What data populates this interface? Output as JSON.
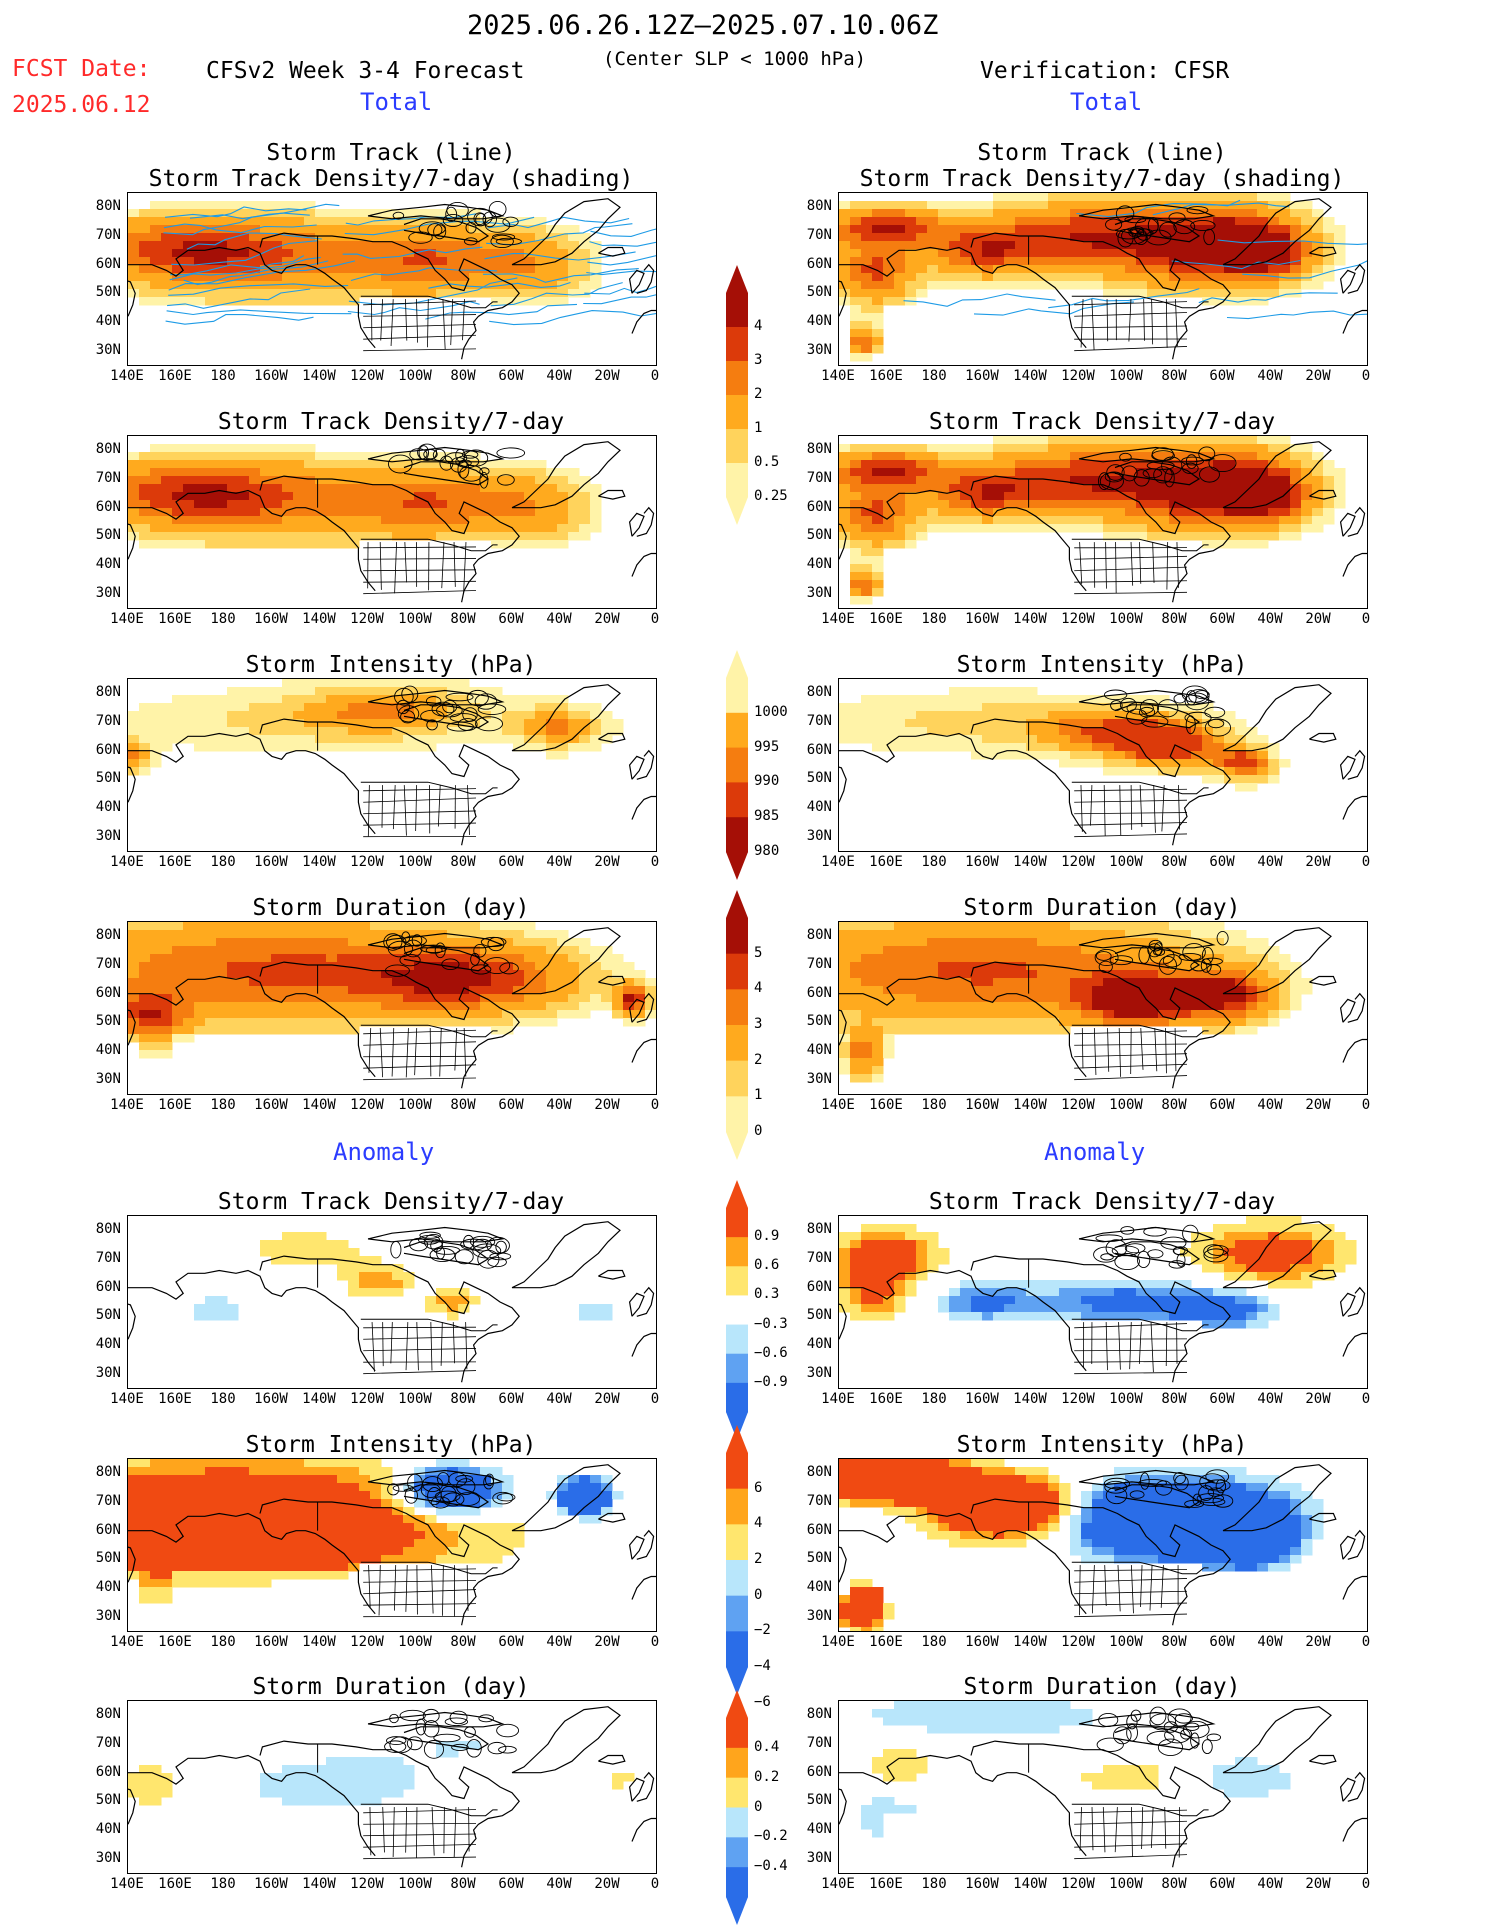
{
  "header": {
    "period": "2025.06.26.12Z–2025.07.10.06Z",
    "fcst_label": "FCST Date:",
    "fcst_date": "2025.06.12",
    "model": "CFSv2 Week 3-4 Forecast",
    "criterion": "(Center SLP < 1000 hPa)",
    "verification": "Verification: CFSR",
    "total_left": "Total",
    "total_right": "Total",
    "anomaly_left": "Anomaly",
    "anomaly_right": "Anomaly"
  },
  "panel_titles": {
    "track_line": "Storm Track (line)",
    "track_shading": "Storm Track Density/7-day (shading)",
    "density": "Storm Track Density/7-day",
    "intensity": "Storm Intensity (hPa)",
    "duration": "Storm Duration (day)"
  },
  "axes": {
    "lat_labels": [
      "80N",
      "70N",
      "60N",
      "50N",
      "40N",
      "30N"
    ],
    "lon_labels": [
      "140E",
      "160E",
      "180",
      "160W",
      "140W",
      "120W",
      "100W",
      "80W",
      "60W",
      "40W",
      "20W",
      "0"
    ]
  },
  "colorbars": {
    "density_total": [
      "4",
      "3",
      "2",
      "1",
      "0.5",
      "0.25"
    ],
    "intensity_total": [
      "1000",
      "995",
      "990",
      "985",
      "980"
    ],
    "duration_total": [
      "5",
      "4",
      "3",
      "2",
      "1",
      "0"
    ],
    "density_anom": [
      "0.9",
      "0.6",
      "0.3",
      "−0.3",
      "−0.6",
      "−0.9"
    ],
    "intensity_anom": [
      "6",
      "4",
      "2",
      "0",
      "−2",
      "−4",
      "−6"
    ],
    "duration_anom": [
      "0.4",
      "0.2",
      "0",
      "−0.2",
      "−0.4"
    ]
  },
  "palettes": {
    "warm": [
      "#ffffff",
      "#fff3a8",
      "#ffd35c",
      "#ffaa1e",
      "#f57d10",
      "#dc3a0a",
      "#a50f06"
    ],
    "anom": [
      "#2a6de8",
      "#5fa2f2",
      "#b8e6fb",
      "#ffffff",
      "#ffe66e",
      "#ffa51c",
      "#f04a12"
    ],
    "intensity": [
      "#a50f06",
      "#dc3a0a",
      "#f57d10",
      "#ffaa1e",
      "#fff3a8",
      "#ffffff"
    ],
    "track_line": "#1e9be6"
  },
  "chart_data": [
    {
      "type": "heatmap",
      "panel": "forecast-total-track",
      "title": "Storm Track (line) / Storm Track Density/7-day (shading)",
      "scheme": "warm",
      "blobs": [
        [
          190,
          -115,
          65,
          55,
          10,
          1.6
        ],
        [
          220,
          -130,
          60,
          70,
          14,
          1.2
        ],
        [
          270,
          -85,
          62,
          30,
          10,
          2.2
        ],
        [
          160,
          -30,
          68,
          40,
          8,
          1.7
        ],
        [
          170,
          -160,
          60,
          30,
          8,
          1.4
        ],
        [
          310,
          -50,
          60,
          20,
          10,
          1.5
        ]
      ]
    },
    {
      "type": "heatmap",
      "panel": "verification-total-track",
      "title": "Storm Track (line) / Storm Track Density/7-day (shading)",
      "scheme": "warm",
      "blobs": [
        [
          160,
          -10,
          73,
          22,
          6,
          4.2
        ],
        [
          155,
          -35,
          58,
          15,
          10,
          3.2
        ],
        [
          150,
          -45,
          33,
          6,
          5,
          3.0
        ],
        [
          200,
          -85,
          65,
          22,
          8,
          3.3
        ],
        [
          240,
          -130,
          70,
          36,
          10,
          3.6
        ],
        [
          290,
          -90,
          66,
          35,
          12,
          4.0
        ],
        [
          320,
          -60,
          64,
          14,
          8,
          3.0
        ],
        [
          305,
          -30,
          68,
          22,
          10,
          3.2
        ]
      ]
    },
    {
      "type": "heatmap",
      "panel": "forecast-total-density",
      "title": "Storm Track Density/7-day",
      "scheme": "warm",
      "blobs": [
        [
          190,
          -115,
          65,
          55,
          10,
          1.6
        ],
        [
          220,
          -130,
          60,
          70,
          14,
          1.2
        ],
        [
          270,
          -85,
          62,
          30,
          10,
          2.2
        ],
        [
          160,
          -30,
          68,
          40,
          8,
          1.7
        ],
        [
          170,
          -160,
          60,
          30,
          8,
          1.4
        ],
        [
          310,
          -50,
          60,
          20,
          10,
          1.5
        ]
      ]
    },
    {
      "type": "heatmap",
      "panel": "verification-total-density",
      "title": "Storm Track Density/7-day",
      "scheme": "warm",
      "blobs": [
        [
          160,
          -10,
          73,
          22,
          6,
          4.2
        ],
        [
          155,
          -35,
          58,
          15,
          10,
          3.2
        ],
        [
          150,
          -45,
          33,
          6,
          5,
          3.0
        ],
        [
          200,
          -85,
          65,
          22,
          8,
          3.3
        ],
        [
          240,
          -130,
          70,
          36,
          10,
          3.6
        ],
        [
          290,
          -90,
          66,
          35,
          12,
          4.0
        ],
        [
          320,
          -60,
          64,
          14,
          8,
          3.0
        ],
        [
          305,
          -30,
          68,
          22,
          10,
          3.2
        ]
      ]
    },
    {
      "type": "heatmap",
      "panel": "forecast-total-intensity",
      "title": "Storm Intensity (hPa)",
      "scheme": "intensity",
      "blobs": [
        [
          200,
          -140,
          70,
          80,
          12,
          1.2
        ],
        [
          250,
          -120,
          75,
          40,
          10,
          2.0
        ],
        [
          320,
          -60,
          68,
          20,
          8,
          2.4
        ],
        [
          140,
          -20,
          58,
          10,
          6,
          2.6
        ]
      ]
    },
    {
      "type": "heatmap",
      "panel": "verification-total-intensity",
      "title": "Storm Intensity (hPa)",
      "scheme": "intensity",
      "blobs": [
        [
          200,
          -140,
          70,
          80,
          12,
          1.4
        ],
        [
          260,
          -100,
          66,
          35,
          8,
          2.6
        ],
        [
          310,
          -40,
          55,
          12,
          6,
          3.0
        ],
        [
          280,
          -80,
          60,
          25,
          8,
          2.4
        ]
      ]
    },
    {
      "type": "heatmap",
      "panel": "forecast-total-duration",
      "title": "Storm Duration (day)",
      "scheme": "warm",
      "blobs": [
        [
          200,
          -130,
          68,
          80,
          16,
          3.2
        ],
        [
          150,
          -40,
          52,
          14,
          8,
          3.4
        ],
        [
          350,
          -40,
          58,
          6,
          5,
          4.4
        ],
        [
          280,
          -90,
          65,
          40,
          10,
          3.6
        ]
      ]
    },
    {
      "type": "heatmap",
      "panel": "verification-total-duration",
      "title": "Storm Duration (day)",
      "scheme": "warm",
      "blobs": [
        [
          200,
          -130,
          68,
          80,
          16,
          3.2
        ],
        [
          265,
          -90,
          58,
          22,
          8,
          5.6
        ],
        [
          300,
          -60,
          60,
          18,
          8,
          4.4
        ],
        [
          150,
          -40,
          40,
          10,
          8,
          2.2
        ]
      ]
    },
    {
      "type": "heatmap",
      "panel": "forecast-anomaly-density",
      "title": "Storm Track Density/7-day",
      "scheme": "anom",
      "blobs": [
        [
          215,
          -110,
          73,
          28,
          8,
          0.5
        ],
        [
          245,
          -118,
          62,
          14,
          6,
          0.8
        ],
        [
          275,
          -85,
          55,
          10,
          5,
          0.8
        ],
        [
          175,
          -30,
          52,
          14,
          6,
          -0.5
        ],
        [
          335,
          -65,
          52,
          12,
          6,
          -0.4
        ],
        [
          150,
          -45,
          72,
          14,
          6,
          -0.3
        ]
      ]
    },
    {
      "type": "heatmap",
      "panel": "verification-anomaly-density",
      "title": "Storm Track Density/7-day",
      "scheme": "anom",
      "blobs": [
        [
          160,
          -15,
          72,
          20,
          8,
          1.3
        ],
        [
          155,
          -38,
          60,
          14,
          10,
          1.2
        ],
        [
          320,
          -45,
          72,
          30,
          10,
          1.3
        ],
        [
          200,
          -80,
          55,
          18,
          6,
          -1.0
        ],
        [
          260,
          -110,
          55,
          40,
          8,
          -1.1
        ],
        [
          300,
          -55,
          52,
          20,
          6,
          -1.1
        ]
      ]
    },
    {
      "type": "heatmap",
      "panel": "forecast-anomaly-intensity",
      "title": "Storm Intensity (hPa)",
      "scheme": "anom",
      "blobs": [
        [
          180,
          -140,
          62,
          90,
          20,
          2.2
        ],
        [
          275,
          -115,
          74,
          20,
          8,
          -2.5
        ],
        [
          330,
          -60,
          72,
          10,
          6,
          -3.0
        ]
      ]
    },
    {
      "type": "heatmap",
      "panel": "verification-anomaly-intensity",
      "title": "Storm Intensity (hPa)",
      "scheme": "anom",
      "blobs": [
        [
          160,
          -15,
          78,
          28,
          6,
          5.0
        ],
        [
          210,
          -100,
          68,
          30,
          10,
          2.5
        ],
        [
          280,
          -90,
          64,
          40,
          12,
          -3.5
        ],
        [
          310,
          -45,
          58,
          14,
          8,
          -4.0
        ],
        [
          150,
          -40,
          32,
          8,
          6,
          6.5
        ]
      ]
    },
    {
      "type": "heatmap",
      "panel": "forecast-anomaly-duration",
      "title": "Storm Duration (day)",
      "scheme": "anom",
      "blobs": [
        [
          150,
          -10,
          72,
          30,
          10,
          0.25
        ],
        [
          225,
          -90,
          56,
          40,
          10,
          -0.55
        ],
        [
          280,
          -90,
          70,
          38,
          10,
          -0.3
        ],
        [
          150,
          -45,
          55,
          12,
          8,
          0.5
        ],
        [
          345,
          -40,
          58,
          8,
          6,
          0.4
        ]
      ]
    },
    {
      "type": "heatmap",
      "panel": "verification-anomaly-duration",
      "title": "Storm Duration (day)",
      "scheme": "anom",
      "blobs": [
        [
          200,
          -90,
          80,
          60,
          8,
          -0.55
        ],
        [
          165,
          -25,
          62,
          16,
          8,
          0.55
        ],
        [
          260,
          -80,
          58,
          22,
          6,
          0.55
        ],
        [
          160,
          -30,
          45,
          18,
          10,
          -0.5
        ],
        [
          310,
          -30,
          58,
          22,
          8,
          -0.55
        ]
      ]
    }
  ]
}
